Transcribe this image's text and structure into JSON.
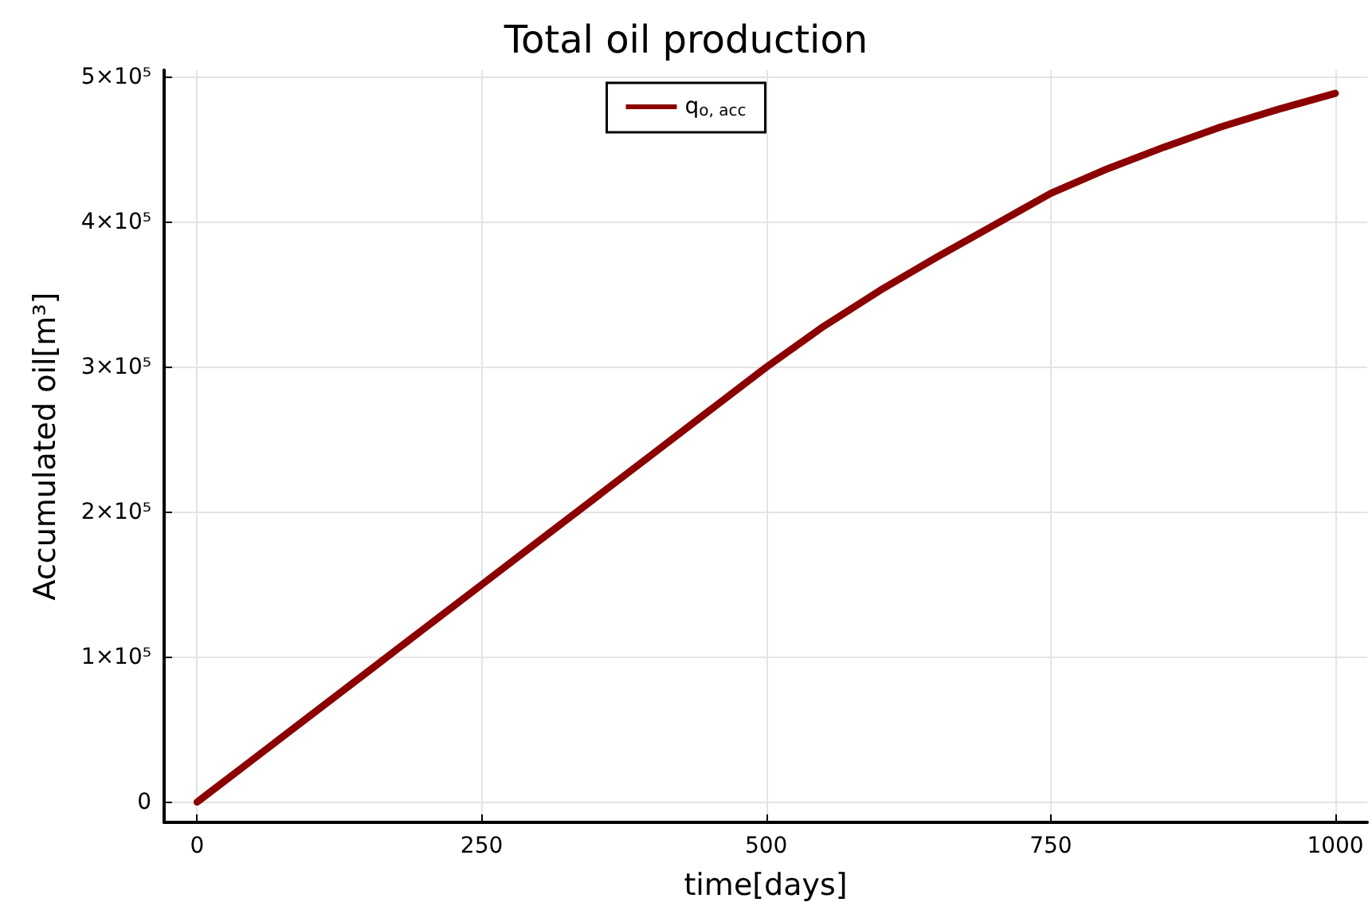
{
  "chart_data": {
    "type": "line",
    "title": "Total oil production",
    "xlabel": "time[days]",
    "ylabel": "Accumulated oil[m³]",
    "x": [
      0,
      50,
      100,
      150,
      200,
      250,
      300,
      350,
      400,
      450,
      500,
      550,
      600,
      650,
      700,
      750,
      800,
      850,
      900,
      950,
      1000
    ],
    "series": [
      {
        "name": "q$_{o, acc}$",
        "color": "#8b0000",
        "values": [
          0,
          30000,
          60000,
          90000,
          120000,
          150000,
          180000,
          210000,
          240000,
          270000,
          300000,
          328000,
          353000,
          376000,
          398000,
          420000,
          437000,
          452000,
          466000,
          478000,
          489000
        ]
      }
    ],
    "xlim": [
      -29,
      1028
    ],
    "xticks": [
      0,
      250,
      500,
      750,
      1000
    ],
    "ylim": [
      -14000,
      505000
    ],
    "yticks": [
      {
        "value": 0,
        "label": "0"
      },
      {
        "value": 100000,
        "label": "1×10⁵"
      },
      {
        "value": 200000,
        "label": "2×10⁵"
      },
      {
        "value": 300000,
        "label": "3×10⁵"
      },
      {
        "value": 400000,
        "label": "4×10⁵"
      },
      {
        "value": 500000,
        "label": "5×10⁵"
      }
    ],
    "grid": true,
    "legend": "top",
    "marker": "none",
    "line_style": "solid"
  }
}
